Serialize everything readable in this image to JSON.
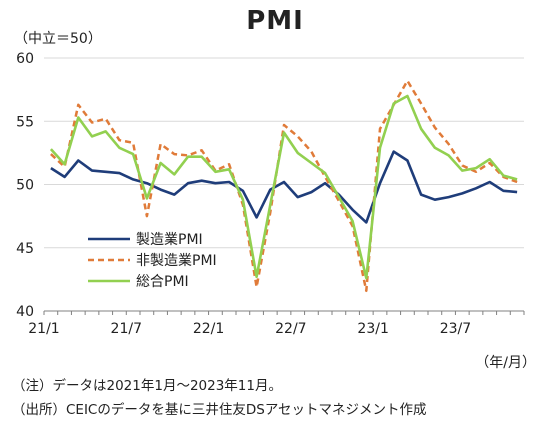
{
  "chart_data": {
    "type": "line",
    "title": "PMI",
    "y_unit_label": "（中立＝50）",
    "x_unit_label": "（年/月）",
    "ylim": [
      40,
      60
    ],
    "yticks": [
      40,
      45,
      50,
      55,
      60
    ],
    "grid": true,
    "legend_position": "lower-left",
    "x": [
      "2021-01",
      "2021-02",
      "2021-03",
      "2021-04",
      "2021-05",
      "2021-06",
      "2021-07",
      "2021-08",
      "2021-09",
      "2021-10",
      "2021-11",
      "2021-12",
      "2022-01",
      "2022-02",
      "2022-03",
      "2022-04",
      "2022-05",
      "2022-06",
      "2022-07",
      "2022-08",
      "2022-09",
      "2022-10",
      "2022-11",
      "2022-12",
      "2023-01",
      "2023-02",
      "2023-03",
      "2023-04",
      "2023-05",
      "2023-06",
      "2023-07",
      "2023-08",
      "2023-09",
      "2023-10",
      "2023-11"
    ],
    "xtick_labels": [
      {
        "x": "2021-01",
        "label": "21/1"
      },
      {
        "x": "2021-07",
        "label": "21/7"
      },
      {
        "x": "2022-01",
        "label": "22/1"
      },
      {
        "x": "2022-07",
        "label": "22/7"
      },
      {
        "x": "2023-01",
        "label": "23/1"
      },
      {
        "x": "2023-07",
        "label": "23/7"
      }
    ],
    "series": [
      {
        "name": "製造業PMI",
        "color": "#1f3d7a",
        "style": "solid",
        "values": [
          51.3,
          50.6,
          51.9,
          51.1,
          51.0,
          50.9,
          50.4,
          50.1,
          49.6,
          49.2,
          50.1,
          50.3,
          50.1,
          50.2,
          49.5,
          47.4,
          49.6,
          50.2,
          49.0,
          49.4,
          50.1,
          49.2,
          48.0,
          47.0,
          50.1,
          52.6,
          51.9,
          49.2,
          48.8,
          49.0,
          49.3,
          49.7,
          50.2,
          49.5,
          49.4
        ]
      },
      {
        "name": "非製造業PMI",
        "color": "#e07b39",
        "style": "dashed",
        "values": [
          52.4,
          51.4,
          56.3,
          54.9,
          55.2,
          53.5,
          53.3,
          47.5,
          53.2,
          52.4,
          52.3,
          52.7,
          51.1,
          51.6,
          48.4,
          41.9,
          47.8,
          54.7,
          53.8,
          52.6,
          50.6,
          48.7,
          46.7,
          41.6,
          54.4,
          56.3,
          58.2,
          56.4,
          54.5,
          53.2,
          51.5,
          51.0,
          51.7,
          50.6,
          50.2
        ]
      },
      {
        "name": "総合PMI",
        "color": "#92d050",
        "style": "solid",
        "values": [
          52.8,
          51.6,
          55.3,
          53.8,
          54.2,
          52.9,
          52.4,
          48.9,
          51.7,
          50.8,
          52.2,
          52.2,
          51.0,
          51.2,
          48.8,
          42.7,
          48.4,
          54.1,
          52.5,
          51.7,
          50.9,
          49.0,
          47.1,
          42.6,
          52.9,
          56.4,
          57.0,
          54.4,
          52.9,
          52.3,
          51.1,
          51.3,
          52.0,
          50.7,
          50.4
        ]
      }
    ]
  },
  "notes": {
    "note1": "（注）データは2021年1月～2023年11月。",
    "note2": "（出所）CEICのデータを基に三井住友DSアセットマネジメント作成"
  }
}
